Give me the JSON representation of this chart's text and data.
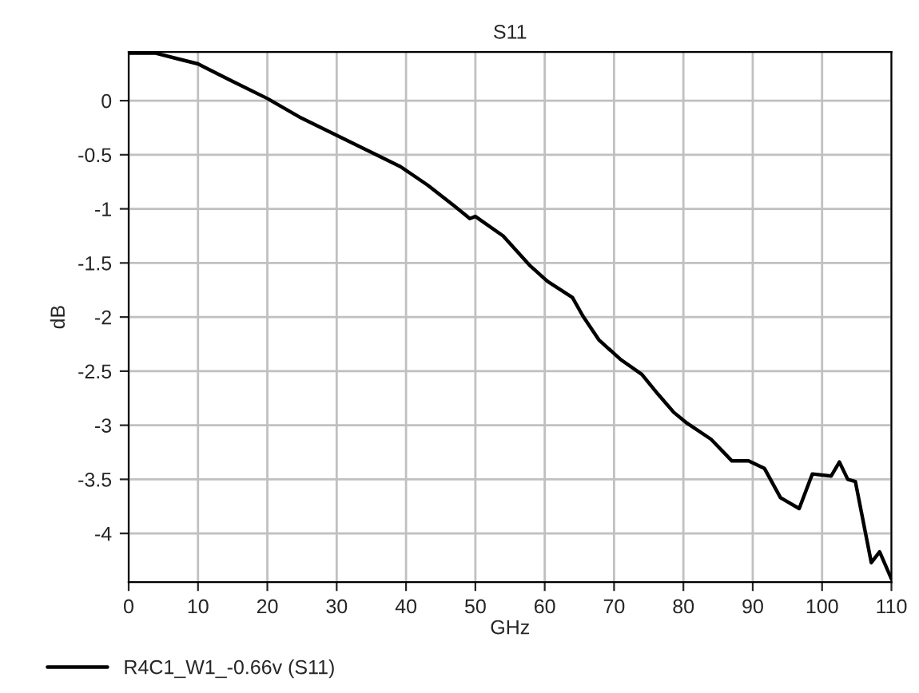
{
  "chart_data": {
    "type": "line",
    "title": "S11",
    "xlabel": "GHz",
    "ylabel": "dB",
    "x": [
      0,
      3.8,
      6.9,
      10,
      14.6,
      20,
      24.6,
      30,
      35.4,
      39.2,
      43.1,
      46.9,
      49.2,
      50,
      54,
      57.8,
      60.4,
      64,
      65.5,
      67.8,
      70.9,
      74,
      76.3,
      78.6,
      80.5,
      84,
      87,
      89.4,
      91.7,
      94,
      96.7,
      98.6,
      101.3,
      102.5,
      103.7,
      104.8,
      107.1,
      108.3,
      110
    ],
    "series": [
      {
        "name": "R4C1_W1_-0.66v (S11)",
        "color": "#000000",
        "values": [
          0.44,
          0.44,
          0.39,
          0.34,
          0.19,
          0.02,
          -0.15,
          -0.32,
          -0.49,
          -0.61,
          -0.78,
          -0.97,
          -1.09,
          -1.07,
          -1.25,
          -1.52,
          -1.67,
          -1.82,
          -1.99,
          -2.21,
          -2.39,
          -2.53,
          -2.71,
          -2.88,
          -2.98,
          -3.13,
          -3.33,
          -3.33,
          -3.4,
          -3.67,
          -3.77,
          -3.45,
          -3.47,
          -3.34,
          -3.5,
          -3.52,
          -4.27,
          -4.17,
          -4.42
        ]
      }
    ],
    "xlim": [
      0,
      110
    ],
    "xticks": [
      0,
      10,
      20,
      30,
      40,
      50,
      60,
      70,
      80,
      90,
      100,
      110
    ],
    "ylim": [
      -4.45,
      0.45
    ],
    "yticks": [
      0,
      -0.5,
      -1,
      -1.5,
      -2,
      -2.5,
      -3,
      -3.5,
      -4
    ],
    "grid": true,
    "legend": "bottom left",
    "marker": "none",
    "line_style": "solid"
  }
}
